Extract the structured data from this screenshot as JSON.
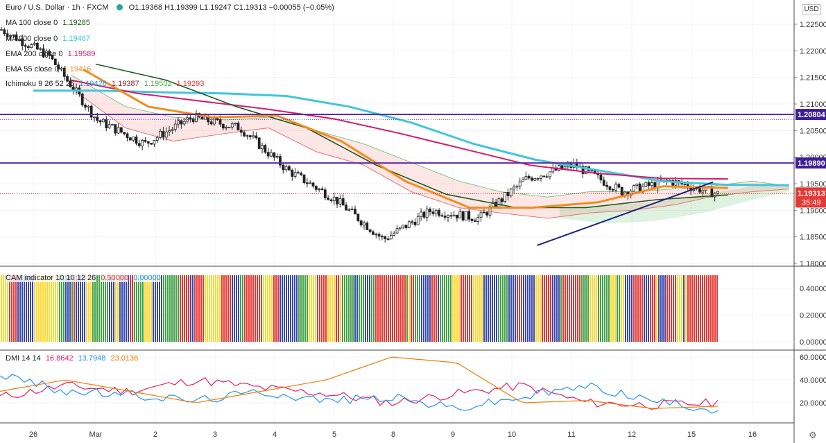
{
  "header": {
    "symbol": "Euro / U.S. Dollar · 1h · FXCM",
    "open": "O1.19368",
    "high": "H1.19399",
    "low": "L1.19247",
    "close": "C1.19313",
    "change": "−0.00055 (−0.05%)"
  },
  "currency_button": "USD",
  "indicators": {
    "ma100": {
      "label": "MA 100 close 0",
      "value": "1.19285",
      "color": "#1e5a1e"
    },
    "ma200": {
      "label": "MA 200 close 0",
      "value": "1.19467",
      "color": "#3fc6dc"
    },
    "ema200": {
      "label": "EMA 200 close 0",
      "value": "1.19589",
      "color": "#d6196a"
    },
    "ema55": {
      "label": "EMA 55 close 0",
      "value": "1.19416",
      "color": "#f28b1f"
    },
    "ichimoku": {
      "label": "Ichimoku 9 26 52 26",
      "values": [
        "1.19426",
        "1.19387",
        "1.19502",
        "1.19293"
      ],
      "colors": [
        "#2196f3",
        "#8b1a1a",
        "#4caf50",
        "#e53935"
      ]
    }
  },
  "price_axis": {
    "ticks": [
      "1.22500",
      "1.22000",
      "1.21500",
      "1.21000",
      "1.20500",
      "1.20000",
      "1.19500",
      "1.19000",
      "1.18500",
      "1.18000"
    ],
    "levels": [
      {
        "label": "1.20804",
        "value": 1.20804
      },
      {
        "label": "1.19890",
        "value": 1.1989
      }
    ],
    "current": {
      "label": "1.19313",
      "countdown": "35:49",
      "value": 1.19313
    }
  },
  "cam_panel": {
    "legend": "CAM indicator 10 10 12 26",
    "values": [
      "0.50000",
      "0.00000"
    ],
    "ticks": [
      "0.40000",
      "0.20000",
      "0.00000"
    ]
  },
  "dmi_panel": {
    "legend": "DMI 14 14",
    "values": [
      "16.8642",
      "13.7948",
      "23.0136"
    ],
    "colors": [
      "#e91e63",
      "#2196f3",
      "#f57c00"
    ],
    "ticks": [
      "60.0000",
      "40.0000",
      "20.0000"
    ]
  },
  "time_axis": {
    "labels": [
      "26",
      "Mar",
      "2",
      "3",
      "4",
      "5",
      "8",
      "9",
      "10",
      "11",
      "12",
      "15",
      "16"
    ]
  },
  "chart_data": [
    {
      "type": "line",
      "title": "Euro / U.S. Dollar · 1h · FXCM",
      "x_labels": [
        "26",
        "Mar",
        "2",
        "3",
        "4",
        "5",
        "8",
        "9",
        "10",
        "11",
        "12",
        "15"
      ],
      "ylim": [
        1.18,
        1.228
      ],
      "series": [
        {
          "name": "close",
          "values": [
            1.224,
            1.219,
            1.207,
            1.2025,
            1.2075,
            1.2055,
            1.1975,
            1.192,
            1.1845,
            1.19,
            1.1885,
            1.196,
            1.1985,
            1.1935,
            1.1955,
            1.1931
          ]
        },
        {
          "name": "MA 200 close 0",
          "values": [
            1.2125,
            1.2125,
            1.2122,
            1.212,
            1.2115,
            1.2095,
            1.2065,
            1.2025,
            1.1995,
            1.1975,
            1.1955,
            1.1948,
            1.1947
          ]
        },
        {
          "name": "EMA 200 close 0",
          "values": [
            1.2145,
            1.212,
            1.2105,
            1.209,
            1.2072,
            1.2045,
            1.2015,
            1.1985,
            1.197,
            1.196,
            1.1959
          ]
        },
        {
          "name": "MA 100 close 0",
          "values": [
            1.2175,
            1.2145,
            1.2095,
            1.2055,
            1.1985,
            1.193,
            1.1905,
            1.1905,
            1.192,
            1.1929
          ]
        },
        {
          "name": "EMA 55 close 0",
          "values": [
            1.2165,
            1.2095,
            1.2075,
            1.2078,
            1.203,
            1.1955,
            1.1905,
            1.1905,
            1.1915,
            1.1945,
            1.1942
          ]
        }
      ],
      "horizontal_levels": [
        1.20804,
        1.1989
      ],
      "trendline": [
        [
          1.1834,
          1.1953
        ]
      ]
    },
    {
      "type": "bar",
      "title": "CAM indicator 10 10 12 26",
      "ylim": [
        0,
        0.5
      ],
      "color_legend": [
        "#e53935",
        "#fdd835",
        "#43a047",
        "#3949ab"
      ]
    },
    {
      "type": "line",
      "title": "DMI 14 14",
      "ylim": [
        0,
        65
      ],
      "series": [
        {
          "name": "DI+",
          "values": [
            25,
            35,
            30,
            40,
            33,
            28,
            20,
            28,
            35,
            20,
            18,
            20
          ]
        },
        {
          "name": "DI-",
          "values": [
            45,
            30,
            27,
            22,
            30,
            22,
            25,
            15,
            25,
            35,
            22,
            14
          ]
        },
        {
          "name": "ADX",
          "values": [
            30,
            40,
            30,
            20,
            30,
            40,
            60,
            55,
            20,
            22,
            15,
            17
          ]
        }
      ]
    }
  ]
}
